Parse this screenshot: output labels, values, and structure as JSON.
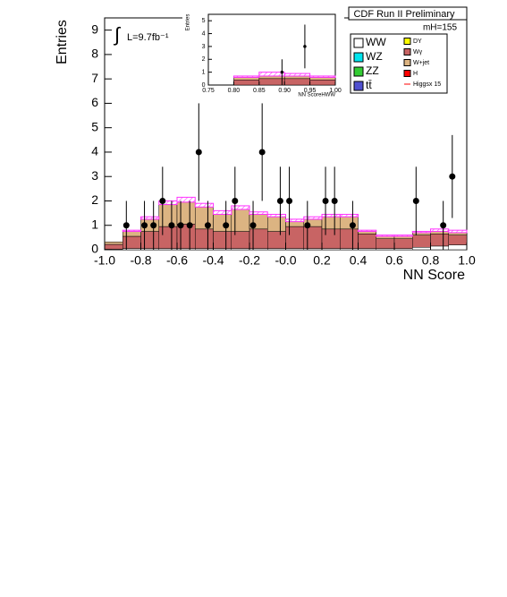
{
  "chart_data": [
    {
      "type": "histogram",
      "title": "CDF Run II Preliminary",
      "annotation": "mH=155",
      "luminosity": "L=9.7fb⁻¹",
      "xlabel": "NN Score",
      "ylabel": "Entries",
      "bins": [
        -1.0,
        -0.9,
        -0.8,
        -0.7,
        -0.6,
        -0.5,
        -0.4,
        -0.3,
        -0.2,
        -0.1,
        0.0,
        0.1,
        0.2,
        0.3,
        0.4,
        0.5,
        0.6,
        0.7,
        0.8,
        0.9,
        1.0
      ],
      "xlim": [
        -1.0,
        1.0
      ],
      "ylim": [
        0,
        9.5
      ],
      "xticks": [
        {
          "value": -1.0,
          "label": "-1.0"
        },
        {
          "value": -0.8,
          "label": "-0.8"
        },
        {
          "value": -0.6,
          "label": "-0.6"
        },
        {
          "value": -0.4,
          "label": "-0.4"
        },
        {
          "value": -0.2,
          "label": "-0.2"
        },
        {
          "value": 0.0,
          "label": "-0.0"
        },
        {
          "value": 0.2,
          "label": "0.2"
        },
        {
          "value": 0.4,
          "label": "0.4"
        },
        {
          "value": 0.6,
          "label": "0.6"
        },
        {
          "value": 0.8,
          "label": "0.8"
        },
        {
          "value": 1.0,
          "label": "1.0"
        }
      ],
      "yticks": [
        0,
        1,
        2,
        3,
        4,
        5,
        6,
        7,
        8,
        9
      ],
      "series": [
        {
          "name": "WW",
          "color": "#ffffff",
          "values": [
            0.02,
            0.05,
            0.05,
            0.05,
            0.05,
            0.05,
            0.05,
            0.05,
            0.05,
            0.05,
            0.05,
            0.05,
            0.05,
            0.05,
            0.05,
            0.05,
            0.05,
            0.1,
            0.15,
            0.2
          ]
        },
        {
          "name": "WZ",
          "color": "#00e5ee",
          "values": [
            0,
            0,
            0,
            0,
            0,
            0,
            0,
            0,
            0,
            0,
            0,
            0,
            0,
            0,
            0,
            0,
            0,
            0,
            0,
            0
          ]
        },
        {
          "name": "ZZ",
          "color": "#33cc33",
          "values": [
            0,
            0,
            0,
            0,
            0,
            0,
            0,
            0,
            0,
            0,
            0,
            0,
            0,
            0,
            0,
            0,
            0,
            0,
            0,
            0
          ]
        },
        {
          "name": "tt̄",
          "color": "#5050d0",
          "values": [
            0,
            0,
            0,
            0,
            0,
            0,
            0,
            0,
            0,
            0,
            0,
            0,
            0,
            0,
            0,
            0,
            0,
            0,
            0,
            0
          ]
        },
        {
          "name": "DY",
          "color": "#ffff00",
          "values": [
            0,
            0,
            0,
            0,
            0,
            0,
            0,
            0,
            0,
            0,
            0,
            0,
            0,
            0,
            0,
            0,
            0,
            0,
            0,
            0
          ]
        },
        {
          "name": "Wγ",
          "color": "#c86464",
          "values": [
            0.2,
            0.5,
            0.7,
            0.9,
            1.0,
            0.8,
            0.7,
            0.7,
            0.8,
            0.7,
            0.9,
            0.9,
            0.8,
            0.8,
            0.6,
            0.4,
            0.4,
            0.5,
            0.5,
            0.4
          ]
        },
        {
          "name": "W+jet",
          "color": "#dcb482",
          "values": [
            0.1,
            0.2,
            0.5,
            0.9,
            0.9,
            0.9,
            0.7,
            0.9,
            0.6,
            0.6,
            0.2,
            0.3,
            0.5,
            0.5,
            0.1,
            0.1,
            0.1,
            0.1,
            0.1,
            0.1
          ]
        },
        {
          "name": "H",
          "color": "#ff0000",
          "values": [
            0,
            0,
            0,
            0,
            0,
            0,
            0,
            0,
            0,
            0,
            0,
            0,
            0,
            0,
            0,
            0,
            0,
            0,
            0,
            0
          ]
        },
        {
          "name": "Higgsx 15",
          "color": "#ff33ff",
          "style": "line",
          "values": [
            0,
            0.05,
            0.1,
            0.15,
            0.2,
            0.15,
            0.15,
            0.15,
            0.1,
            0.1,
            0.1,
            0.1,
            0.1,
            0.1,
            0.05,
            0.05,
            0.05,
            0.05,
            0.1,
            0.1
          ]
        }
      ],
      "points": {
        "color": "#000000",
        "x": [
          -0.88,
          -0.78,
          -0.73,
          -0.68,
          -0.63,
          -0.58,
          -0.53,
          -0.48,
          -0.43,
          -0.33,
          -0.28,
          -0.18,
          -0.13,
          -0.03,
          0.02,
          0.12,
          0.22,
          0.27,
          0.37,
          0.72,
          0.87,
          0.92
        ],
        "values": [
          1,
          1,
          1,
          2,
          1,
          1,
          1,
          4,
          1,
          1,
          2,
          1,
          4,
          2,
          2,
          1,
          2,
          2,
          1,
          2,
          1,
          3
        ],
        "errors": [
          1,
          1,
          1,
          1.4,
          1,
          1,
          1,
          2,
          1,
          1,
          1.4,
          1,
          2,
          1.4,
          1.4,
          1,
          1.4,
          1.4,
          1,
          1.4,
          1,
          1.7
        ]
      }
    },
    {
      "type": "histogram",
      "xlabel": "NN ScoreHWW",
      "ylabel": "Entries",
      "bins": [
        0.75,
        0.8,
        0.85,
        0.9,
        0.95,
        1.0
      ],
      "xlim": [
        0.75,
        1.0
      ],
      "ylim": [
        0,
        5.5
      ],
      "xticks": [
        {
          "value": 0.75,
          "label": "0.75"
        },
        {
          "value": 0.8,
          "label": "0.80"
        },
        {
          "value": 0.85,
          "label": "0.85"
        },
        {
          "value": 0.9,
          "label": "0.90"
        },
        {
          "value": 0.95,
          "label": "0.95"
        },
        {
          "value": 1.0,
          "label": "1.00"
        }
      ],
      "yticks": [
        0,
        1,
        2,
        3,
        4,
        5
      ],
      "series": [
        {
          "name": "Wγ",
          "color": "#c86464",
          "values": [
            0,
            0.4,
            0.5,
            0.5,
            0.4
          ]
        },
        {
          "name": "W+jet",
          "color": "#dcb482",
          "values": [
            0,
            0.2,
            0.2,
            0.2,
            0.2
          ]
        },
        {
          "name": "Higgsx 15",
          "color": "#ff33ff",
          "style": "line",
          "values": [
            0,
            0.1,
            0.3,
            0.2,
            0.1
          ]
        }
      ],
      "points": {
        "color": "#000000",
        "x": [
          0.895,
          0.94
        ],
        "values": [
          1,
          3
        ],
        "errors": [
          1,
          1.7
        ]
      }
    }
  ]
}
